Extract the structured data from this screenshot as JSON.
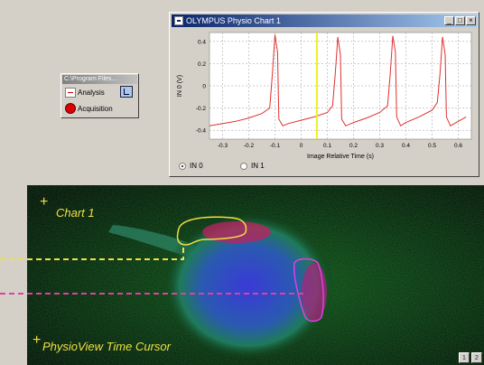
{
  "chart_window": {
    "title": "OLYMPUS Physio Chart 1",
    "minimize": "_",
    "restore": "□",
    "close": "×",
    "radio_in0": "IN 0",
    "radio_in1": "IN 1",
    "radio_selected": "IN 0"
  },
  "program_window": {
    "title": "C:\\Program Files...",
    "analysis_label": "Analysis",
    "acquisition_label": "Acquisition"
  },
  "image_view": {
    "chart_label": "Chart 1",
    "cursor_label": "PhysioView Time Cursor",
    "page_buttons": [
      "1",
      "2"
    ]
  },
  "colors": {
    "trace": "#e03030",
    "cursor": "#f0f020",
    "roi_yellow": "#f0e040",
    "roi_magenta": "#e040e0"
  },
  "chart_data": {
    "type": "line",
    "xlabel": "Image Relative Time (s)",
    "ylabel": "IN 0 (V)",
    "xlim": [
      -0.35,
      0.65
    ],
    "ylim": [
      -0.48,
      0.48
    ],
    "xticks": [
      -0.3,
      -0.2,
      -0.1,
      0,
      0.1,
      0.2,
      0.3,
      0.4,
      0.5,
      0.6
    ],
    "xtick_labels": [
      "-0.3",
      "-0.2",
      "-0.1",
      "0",
      "0.1",
      "0.2",
      "0.3",
      "0.4",
      "0.5",
      "0.6"
    ],
    "yticks": [
      -0.4,
      -0.2,
      0,
      0.2,
      0.4
    ],
    "ytick_labels": [
      "-0.4",
      "-0.2",
      "0",
      "0.2",
      "0.4"
    ],
    "grid": true,
    "cursor_x": 0.06,
    "series": [
      {
        "x": [
          -0.35,
          -0.3,
          -0.25,
          -0.2,
          -0.15,
          -0.12,
          -0.11,
          -0.1,
          -0.09,
          -0.085,
          -0.07,
          -0.05,
          0,
          0.05,
          0.1,
          0.12,
          0.13,
          0.14,
          0.15,
          0.155,
          0.17,
          0.2,
          0.25,
          0.3,
          0.33,
          0.34,
          0.35,
          0.36,
          0.365,
          0.38,
          0.4,
          0.45,
          0.5,
          0.52,
          0.53,
          0.54,
          0.55,
          0.555,
          0.57,
          0.6,
          0.63
        ],
        "y": [
          -0.36,
          -0.34,
          -0.32,
          -0.29,
          -0.25,
          -0.2,
          0.1,
          0.46,
          0.3,
          -0.3,
          -0.36,
          -0.34,
          -0.31,
          -0.28,
          -0.24,
          -0.18,
          0.1,
          0.44,
          0.28,
          -0.3,
          -0.36,
          -0.33,
          -0.29,
          -0.24,
          -0.18,
          0.1,
          0.45,
          0.3,
          -0.28,
          -0.36,
          -0.33,
          -0.28,
          -0.22,
          -0.15,
          0.1,
          0.44,
          0.28,
          -0.28,
          -0.36,
          -0.32,
          -0.28
        ]
      }
    ]
  }
}
